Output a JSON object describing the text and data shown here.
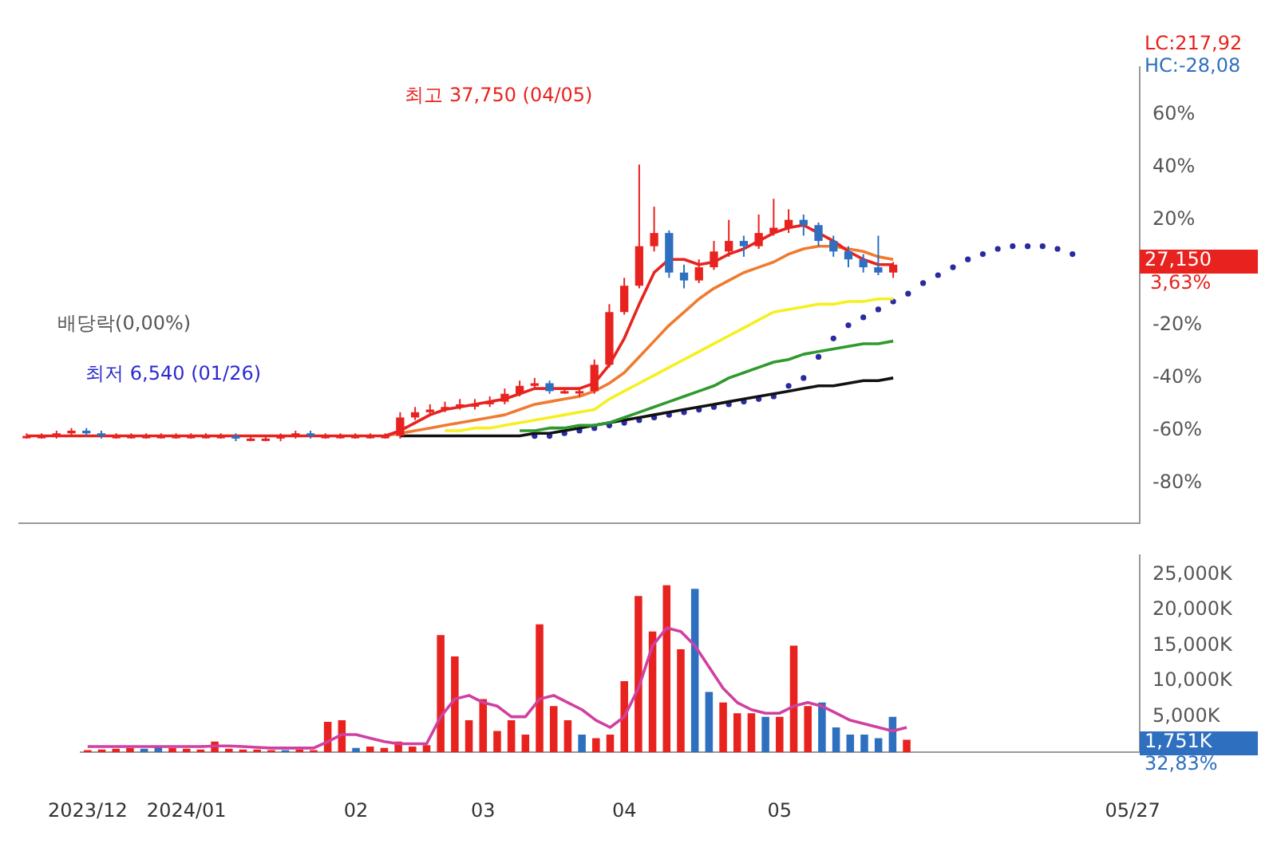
{
  "chart_data": [
    {
      "type": "candlestick",
      "categories": [
        null,
        null,
        null,
        null,
        null,
        null,
        null,
        null,
        null,
        null,
        null,
        null,
        null,
        null,
        null,
        null,
        null,
        null,
        null,
        null,
        null,
        null,
        null,
        null,
        null,
        null,
        null,
        null,
        null,
        null,
        null,
        null,
        null,
        null,
        null,
        null,
        null,
        null,
        null,
        null,
        null,
        null,
        null,
        null,
        null,
        null,
        null,
        null,
        null,
        null,
        null,
        null,
        null,
        null,
        null,
        null,
        null,
        null,
        null,
        null,
        null,
        null,
        null,
        null,
        null,
        null,
        null,
        null,
        null,
        null,
        null,
        null,
        null,
        null,
        null
      ],
      "ohlc": [
        [
          -62,
          -61,
          -63,
          -62
        ],
        [
          -62,
          -61,
          -63,
          -62
        ],
        [
          -62,
          -60,
          -63,
          -61
        ],
        [
          -61,
          -59,
          -62,
          -60
        ],
        [
          -60,
          -59,
          -62,
          -61
        ],
        [
          -61,
          -60,
          -63,
          -62
        ],
        [
          -62,
          -61,
          -63,
          -62
        ],
        [
          -62,
          -61,
          -63,
          -62
        ],
        [
          -62,
          -61,
          -63,
          -62
        ],
        [
          -62,
          -61,
          -63,
          -62
        ],
        [
          -62,
          -61,
          -63,
          -62
        ],
        [
          -62,
          -61,
          -63,
          -62
        ],
        [
          -62,
          -61,
          -63,
          -62
        ],
        [
          -62,
          -61,
          -63,
          -62
        ],
        [
          -62,
          -61,
          -64,
          -63
        ],
        [
          -63,
          -62,
          -64,
          -63
        ],
        [
          -63,
          -62,
          -64,
          -63
        ],
        [
          -63,
          -61,
          -64,
          -62
        ],
        [
          -62,
          -60,
          -63,
          -61
        ],
        [
          -61,
          -60,
          -63,
          -62
        ],
        [
          -62,
          -61,
          -63,
          -62
        ],
        [
          -62,
          -61,
          -63,
          -62
        ],
        [
          -62,
          -61,
          -63,
          -62
        ],
        [
          -62,
          -61,
          -63,
          -62
        ],
        [
          -62,
          -61,
          -63,
          -62
        ],
        [
          -62,
          -53,
          -63,
          -55
        ],
        [
          -55,
          -51,
          -56,
          -53
        ],
        [
          -53,
          -50,
          -54,
          -52
        ],
        [
          -52,
          -49,
          -53,
          -51
        ],
        [
          -51,
          -48,
          -52,
          -50
        ],
        [
          -50,
          -48,
          -52,
          -50
        ],
        [
          -50,
          -47,
          -51,
          -49
        ],
        [
          -49,
          -44,
          -50,
          -46
        ],
        [
          -46,
          -41,
          -47,
          -43
        ],
        [
          -43,
          -40,
          -44,
          -42
        ],
        [
          -42,
          -41,
          -46,
          -45
        ],
        [
          -45,
          -44,
          -46,
          -45
        ],
        [
          -45,
          -44,
          -47,
          -45
        ],
        [
          -45,
          -33,
          -46,
          -35
        ],
        [
          -35,
          -12,
          -36,
          -15
        ],
        [
          -15,
          -2,
          -16,
          -5
        ],
        [
          -5,
          41,
          -6,
          10
        ],
        [
          10,
          25,
          8,
          15
        ],
        [
          15,
          16,
          -2,
          0
        ],
        [
          0,
          3,
          -6,
          -3
        ],
        [
          -3,
          5,
          -4,
          2
        ],
        [
          2,
          12,
          1,
          8
        ],
        [
          8,
          20,
          6,
          12
        ],
        [
          12,
          14,
          6,
          10
        ],
        [
          10,
          22,
          9,
          15
        ],
        [
          15,
          28,
          14,
          17
        ],
        [
          17,
          24,
          15,
          20
        ],
        [
          20,
          22,
          14,
          18
        ],
        [
          18,
          19,
          10,
          12
        ],
        [
          12,
          14,
          6,
          8
        ],
        [
          8,
          10,
          2,
          5
        ],
        [
          5,
          7,
          0,
          2
        ],
        [
          2,
          14,
          -1,
          0
        ],
        [
          0,
          4,
          -2,
          3
        ],
        null,
        null,
        null,
        null,
        null,
        null,
        null,
        null,
        null,
        null,
        null,
        null,
        null,
        null,
        null,
        null
      ],
      "colors": [
        "#e8231f",
        "#e8231f",
        "#e8231f",
        "#e8231f",
        "#2f6fc0",
        "#2f6fc0",
        "#e8231f",
        "#e8231f",
        "#e8231f",
        "#e8231f",
        "#e8231f",
        "#e8231f",
        "#e8231f",
        "#e8231f",
        "#2f6fc0",
        "#e8231f",
        "#e8231f",
        "#e8231f",
        "#e8231f",
        "#2f6fc0",
        "#e8231f",
        "#e8231f",
        "#e8231f",
        "#e8231f",
        "#e8231f",
        "#e8231f",
        "#e8231f",
        "#e8231f",
        "#e8231f",
        "#e8231f",
        "#e8231f",
        "#e8231f",
        "#e8231f",
        "#e8231f",
        "#e8231f",
        "#2f6fc0",
        "#e8231f",
        "#e8231f",
        "#e8231f",
        "#e8231f",
        "#e8231f",
        "#e8231f",
        "#e8231f",
        "#2f6fc0",
        "#2f6fc0",
        "#e8231f",
        "#e8231f",
        "#e8231f",
        "#2f6fc0",
        "#e8231f",
        "#e8231f",
        "#e8231f",
        "#2f6fc0",
        "#2f6fc0",
        "#2f6fc0",
        "#2f6fc0",
        "#2f6fc0",
        "#2f6fc0",
        "#e8231f",
        null,
        null,
        null,
        null,
        null,
        null,
        null,
        null,
        null,
        null,
        null,
        null,
        null,
        null,
        null,
        null
      ],
      "series": [
        {
          "type": "line",
          "color": "#e8231f",
          "values": [
            -62,
            -62,
            -62,
            -62,
            -62,
            -62,
            -62,
            -62,
            -62,
            -62,
            -62,
            -62,
            -62,
            -62,
            -62,
            -62,
            -62,
            -62,
            -62,
            -62,
            -62,
            -62,
            -62,
            -62,
            -62,
            -60,
            -57,
            -54,
            -52,
            -51,
            -50,
            -49,
            -48,
            -46,
            -44,
            -44,
            -44,
            -44,
            -42,
            -35,
            -25,
            -12,
            0,
            5,
            5,
            3,
            4,
            7,
            9,
            12,
            15,
            17,
            18,
            15,
            12,
            8,
            5,
            3,
            3,
            null,
            null,
            null,
            null,
            null,
            null,
            null,
            null,
            null,
            null,
            null,
            null,
            null,
            null,
            null,
            null
          ]
        },
        {
          "type": "line",
          "color": "#f07a30",
          "values": [
            null,
            null,
            null,
            null,
            null,
            null,
            null,
            null,
            null,
            null,
            null,
            null,
            null,
            null,
            null,
            null,
            null,
            null,
            null,
            null,
            null,
            null,
            null,
            null,
            -62,
            -61,
            -60,
            -59,
            -58,
            -57,
            -56,
            -55,
            -54,
            -52,
            -50,
            -49,
            -48,
            -47,
            -45,
            -42,
            -38,
            -32,
            -26,
            -20,
            -15,
            -10,
            -6,
            -3,
            0,
            2,
            4,
            7,
            9,
            10,
            10,
            9,
            8,
            6,
            5,
            null,
            null,
            null,
            null,
            null,
            null,
            null,
            null,
            null,
            null,
            null,
            null,
            null,
            null,
            null,
            null
          ]
        },
        {
          "type": "line",
          "color": "#f5f020",
          "values": [
            null,
            null,
            null,
            null,
            null,
            null,
            null,
            null,
            null,
            null,
            null,
            null,
            null,
            null,
            null,
            null,
            null,
            null,
            null,
            null,
            null,
            null,
            null,
            null,
            null,
            null,
            null,
            null,
            -60,
            -60,
            -59,
            -59,
            -58,
            -57,
            -56,
            -55,
            -54,
            -53,
            -52,
            -48,
            -45,
            -42,
            -39,
            -36,
            -33,
            -30,
            -27,
            -24,
            -21,
            -18,
            -15,
            -14,
            -13,
            -12,
            -12,
            -11,
            -11,
            -10,
            -10,
            null,
            null,
            null,
            null,
            null,
            null,
            null,
            null,
            null,
            null,
            null,
            null,
            null,
            null,
            null,
            null
          ]
        },
        {
          "type": "line",
          "color": "#2e9a2e",
          "values": [
            null,
            null,
            null,
            null,
            null,
            null,
            null,
            null,
            null,
            null,
            null,
            null,
            null,
            null,
            null,
            null,
            null,
            null,
            null,
            null,
            null,
            null,
            null,
            null,
            null,
            null,
            null,
            null,
            null,
            null,
            null,
            null,
            null,
            -60,
            -60,
            -59,
            -59,
            -58,
            -58,
            -57,
            -55,
            -53,
            -51,
            -49,
            -47,
            -45,
            -43,
            -40,
            -38,
            -36,
            -34,
            -33,
            -31,
            -30,
            -29,
            -28,
            -27,
            -27,
            -26,
            null,
            null,
            null,
            null,
            null,
            null,
            null,
            null,
            null,
            null,
            null,
            null,
            null,
            null,
            null,
            null
          ]
        },
        {
          "type": "line",
          "color": "#111111",
          "values": [
            null,
            null,
            null,
            null,
            null,
            null,
            null,
            null,
            null,
            null,
            null,
            null,
            null,
            null,
            null,
            null,
            null,
            null,
            null,
            null,
            null,
            null,
            null,
            null,
            null,
            -62,
            -62,
            -62,
            -62,
            -62,
            -62,
            -62,
            -62,
            -62,
            -61,
            -61,
            -60,
            -59,
            -58,
            -57,
            -56,
            -55,
            -54,
            -53,
            -52,
            -51,
            -50,
            -49,
            -48,
            -47,
            -46,
            -45,
            -44,
            -43,
            -43,
            -42,
            -41,
            -41,
            -40,
            null,
            null,
            null,
            null,
            null,
            null,
            null,
            null,
            null,
            null,
            null,
            null,
            null,
            null,
            null,
            null
          ]
        },
        {
          "type": "scatter",
          "color": "#2a2aa0",
          "marker": "circle",
          "values": [
            null,
            null,
            null,
            null,
            null,
            null,
            null,
            null,
            null,
            null,
            null,
            null,
            null,
            null,
            null,
            null,
            null,
            null,
            null,
            null,
            null,
            null,
            null,
            null,
            null,
            null,
            null,
            null,
            null,
            null,
            null,
            null,
            null,
            null,
            -62,
            -62,
            -61,
            -60,
            -59,
            -58,
            -57,
            -56,
            -55,
            -54,
            -53,
            -52,
            -51,
            -50,
            -49,
            -48,
            -47,
            -43,
            -40,
            -32,
            -25,
            -20,
            -17,
            -14,
            -11,
            -8,
            -4,
            -1,
            2,
            5,
            7,
            9,
            10,
            10,
            10,
            9,
            7,
            null,
            null,
            null,
            null
          ]
        }
      ],
      "ylim": [
        -95,
        78
      ],
      "yticks": [
        {
          "value": 60,
          "label": "60%"
        },
        {
          "value": 40,
          "label": "40%"
        },
        {
          "value": 20,
          "label": "20%"
        },
        {
          "value": -20,
          "label": "-20%"
        },
        {
          "value": -40,
          "label": "-40%"
        },
        {
          "value": -60,
          "label": "-60%"
        },
        {
          "value": -80,
          "label": "-80%"
        }
      ],
      "tick_labels": "y",
      "grid": false,
      "legend": false,
      "annotations": [
        "최고 37,750 (04/05)",
        "배당락(0,00%)",
        "최저 6,540 (01/26)",
        "LC:217,92",
        "HC:-28,08",
        "27,150",
        "3,63%"
      ]
    },
    {
      "type": "bar",
      "categories": [
        "2023/12",
        null,
        null,
        null,
        null,
        null,
        null,
        "2024/01",
        null,
        null,
        null,
        null,
        null,
        null,
        null,
        null,
        null,
        null,
        null,
        "02",
        null,
        null,
        null,
        null,
        null,
        null,
        null,
        null,
        "03",
        null,
        null,
        null,
        null,
        null,
        null,
        null,
        null,
        null,
        "04",
        null,
        null,
        null,
        null,
        null,
        null,
        null,
        null,
        null,
        null,
        "05",
        null,
        null,
        null,
        null,
        null,
        null,
        null,
        null,
        null,
        null,
        null,
        null,
        null,
        null,
        null,
        null,
        null,
        null,
        null,
        null,
        null,
        null,
        null,
        null,
        "05/27"
      ],
      "series": [
        {
          "values": [
            300,
            400,
            500,
            600,
            500,
            800,
            600,
            500,
            400,
            1500,
            500,
            400,
            400,
            300,
            300,
            400,
            300,
            4300,
            4500,
            600,
            800,
            600,
            1500,
            800,
            1000,
            16500,
            13500,
            4500,
            7500,
            3000,
            4500,
            2500,
            18000,
            6500,
            4500,
            2500,
            2000,
            2500,
            10000,
            22000,
            17000,
            23500,
            14500,
            23000,
            8500,
            7000,
            5500,
            5500,
            5000,
            5000,
            15000,
            6500,
            7000,
            3500,
            2500,
            2500,
            2000,
            5000,
            1751,
            null,
            null,
            null,
            null,
            null,
            null,
            null,
            null,
            null,
            null,
            null,
            null,
            null,
            null,
            null,
            null
          ],
          "colors": [
            "#e8231f",
            "#e8231f",
            "#e8231f",
            "#e8231f",
            "#2f6fc0",
            "#2f6fc0",
            "#e8231f",
            "#e8231f",
            "#e8231f",
            "#e8231f",
            "#e8231f",
            "#e8231f",
            "#e8231f",
            "#e8231f",
            "#2f6fc0",
            "#e8231f",
            "#e8231f",
            "#e8231f",
            "#e8231f",
            "#2f6fc0",
            "#e8231f",
            "#e8231f",
            "#e8231f",
            "#e8231f",
            "#e8231f",
            "#e8231f",
            "#e8231f",
            "#e8231f",
            "#e8231f",
            "#e8231f",
            "#e8231f",
            "#e8231f",
            "#e8231f",
            "#e8231f",
            "#e8231f",
            "#2f6fc0",
            "#e8231f",
            "#e8231f",
            "#e8231f",
            "#e8231f",
            "#e8231f",
            "#e8231f",
            "#e8231f",
            "#2f6fc0",
            "#2f6fc0",
            "#e8231f",
            "#e8231f",
            "#e8231f",
            "#2f6fc0",
            "#e8231f",
            "#e8231f",
            "#e8231f",
            "#2f6fc0",
            "#2f6fc0",
            "#2f6fc0",
            "#2f6fc0",
            "#2f6fc0",
            "#2f6fc0",
            "#e8231f",
            null,
            null,
            null,
            null,
            null,
            null,
            null,
            null,
            null,
            null,
            null,
            null,
            null,
            null,
            null,
            null
          ]
        },
        {
          "type": "line",
          "color": "#d040a0",
          "values": [
            800,
            800,
            800,
            800,
            800,
            800,
            800,
            800,
            800,
            900,
            900,
            800,
            700,
            600,
            600,
            600,
            600,
            1500,
            2500,
            2500,
            2000,
            1500,
            1200,
            1200,
            1200,
            5000,
            7500,
            8000,
            7000,
            6500,
            5000,
            5000,
            7500,
            8000,
            7000,
            6000,
            4500,
            3500,
            5000,
            9000,
            15000,
            17500,
            17000,
            15000,
            12000,
            9000,
            7000,
            6000,
            5500,
            5500,
            6500,
            7000,
            6500,
            5500,
            4500,
            4000,
            3500,
            3000,
            3500,
            null,
            null,
            null,
            null,
            null,
            null,
            null,
            null,
            null,
            null,
            null,
            null,
            null,
            null,
            null,
            null
          ]
        }
      ],
      "ylim": [
        0,
        27700
      ],
      "yticks": [
        {
          "value": 5000,
          "label": "5,000K"
        },
        {
          "value": 10000,
          "label": "10,000K"
        },
        {
          "value": 15000,
          "label": "15,000K"
        },
        {
          "value": 20000,
          "label": "20,000K"
        },
        {
          "value": 25000,
          "label": "25,000K"
        }
      ],
      "grid": false,
      "legend": false,
      "annotations": [
        "1,751K",
        "32,83%"
      ]
    }
  ]
}
